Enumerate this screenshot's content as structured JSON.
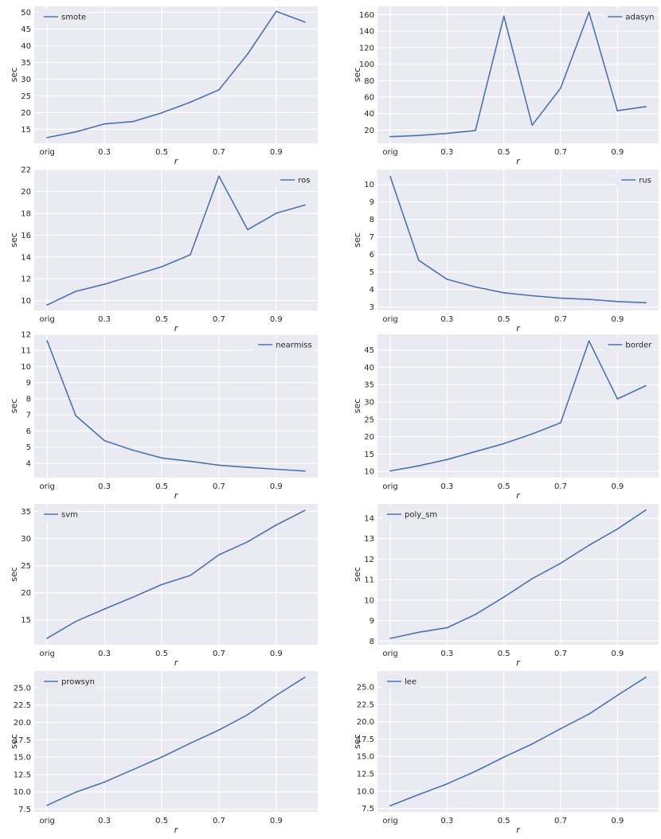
{
  "style": {
    "plot_bg": "#eaeaf2",
    "grid": "#ffffff",
    "line": "#4c72b0"
  },
  "x_tick_labels": [
    "orig",
    "0.3",
    "0.5",
    "0.7",
    "0.9"
  ],
  "x_tick_positions": [
    0.1,
    0.3,
    0.5,
    0.7,
    0.9
  ],
  "chart_data": [
    {
      "type": "line",
      "xlabel": "r",
      "ylabel": "sec",
      "legend_loc": "upper-left",
      "series": [
        {
          "name": "smote",
          "x": [
            0.1,
            0.2,
            0.3,
            0.4,
            0.5,
            0.6,
            0.7,
            0.8,
            0.9,
            1.0
          ],
          "y": [
            12.5,
            14.2,
            16.6,
            17.3,
            19.9,
            23.1,
            26.8,
            37.5,
            50.3,
            47.1
          ]
        }
      ],
      "ylim": [
        10.8,
        51.8
      ],
      "yticks": [
        15,
        20,
        25,
        30,
        35,
        40,
        45,
        50
      ]
    },
    {
      "type": "line",
      "xlabel": "r",
      "ylabel": "sec",
      "legend_loc": "upper-right",
      "series": [
        {
          "name": "adasyn",
          "x": [
            0.1,
            0.2,
            0.3,
            0.4,
            0.5,
            0.6,
            0.7,
            0.8,
            0.9,
            1.0
          ],
          "y": [
            12,
            13.5,
            16,
            19.5,
            158,
            26,
            71,
            163,
            43.5,
            48.5
          ]
        }
      ],
      "ylim": [
        4,
        170
      ],
      "yticks": [
        20,
        40,
        60,
        80,
        100,
        120,
        140,
        160
      ]
    },
    {
      "type": "line",
      "xlabel": "r",
      "ylabel": "sec",
      "legend_loc": "upper-right",
      "series": [
        {
          "name": "ros",
          "x": [
            0.1,
            0.2,
            0.3,
            0.4,
            0.5,
            0.6,
            0.7,
            0.8,
            0.9,
            1.0
          ],
          "y": [
            9.6,
            10.85,
            11.5,
            12.3,
            13.1,
            14.2,
            21.4,
            16.5,
            18.0,
            18.75
          ]
        }
      ],
      "ylim": [
        9.1,
        22.0
      ],
      "yticks": [
        10,
        12,
        14,
        16,
        18,
        20,
        22
      ]
    },
    {
      "type": "line",
      "xlabel": "r",
      "ylabel": "sec",
      "legend_loc": "upper-right",
      "series": [
        {
          "name": "rus",
          "x": [
            0.1,
            0.2,
            0.3,
            0.4,
            0.5,
            0.6,
            0.7,
            0.8,
            0.9,
            1.0
          ],
          "y": [
            10.45,
            5.67,
            4.58,
            4.14,
            3.81,
            3.64,
            3.5,
            3.43,
            3.31,
            3.24
          ]
        }
      ],
      "ylim": [
        2.8,
        10.85
      ],
      "yticks": [
        3,
        4,
        5,
        6,
        7,
        8,
        9,
        10
      ]
    },
    {
      "type": "line",
      "xlabel": "r",
      "ylabel": "sec",
      "legend_loc": "upper-right",
      "series": [
        {
          "name": "nearmiss",
          "x": [
            0.1,
            0.2,
            0.3,
            0.4,
            0.5,
            0.6,
            0.7,
            0.8,
            0.9,
            1.0
          ],
          "y": [
            11.6,
            6.95,
            5.4,
            4.8,
            4.32,
            4.11,
            3.87,
            3.74,
            3.62,
            3.51
          ]
        }
      ],
      "ylim": [
        3.1,
        12.0
      ],
      "yticks": [
        4,
        5,
        6,
        7,
        8,
        9,
        10,
        11,
        12
      ]
    },
    {
      "type": "line",
      "xlabel": "r",
      "ylabel": "sec",
      "legend_loc": "upper-right",
      "series": [
        {
          "name": "border",
          "x": [
            0.1,
            0.2,
            0.3,
            0.4,
            0.5,
            0.6,
            0.7,
            0.8,
            0.9,
            1.0
          ],
          "y": [
            10.1,
            11.6,
            13.4,
            15.7,
            18,
            20.8,
            24,
            47.6,
            30.9,
            34.7
          ]
        }
      ],
      "ylim": [
        8.2,
        49.5
      ],
      "yticks": [
        10,
        15,
        20,
        25,
        30,
        35,
        40,
        45
      ]
    },
    {
      "type": "line",
      "xlabel": "r",
      "ylabel": "sec",
      "legend_loc": "upper-left",
      "series": [
        {
          "name": "svm",
          "x": [
            0.1,
            0.2,
            0.3,
            0.4,
            0.5,
            0.6,
            0.7,
            0.8,
            0.9,
            1.0
          ],
          "y": [
            11.6,
            14.7,
            17,
            19.2,
            21.5,
            23.2,
            27,
            29.4,
            32.5,
            35.2
          ]
        }
      ],
      "ylim": [
        10.4,
        36.4
      ],
      "yticks": [
        15,
        20,
        25,
        30,
        35
      ]
    },
    {
      "type": "line",
      "xlabel": "r",
      "ylabel": "sec",
      "legend_loc": "upper-left",
      "series": [
        {
          "name": "poly_sm",
          "x": [
            0.1,
            0.2,
            0.3,
            0.4,
            0.5,
            0.6,
            0.7,
            0.8,
            0.9,
            1.0
          ],
          "y": [
            8.13,
            8.43,
            8.65,
            9.3,
            10.15,
            11.05,
            11.8,
            12.68,
            13.47,
            14.4
          ]
        }
      ],
      "ylim": [
        7.82,
        14.7
      ],
      "yticks": [
        8,
        9,
        10,
        11,
        12,
        13,
        14
      ]
    },
    {
      "type": "line",
      "xlabel": "r",
      "ylabel": "sec",
      "legend_loc": "upper-left",
      "series": [
        {
          "name": "prowsyn",
          "x": [
            0.1,
            0.2,
            0.3,
            0.4,
            0.5,
            0.6,
            0.7,
            0.8,
            0.9,
            1.0
          ],
          "y": [
            8.05,
            9.95,
            11.4,
            13.2,
            15,
            17,
            18.9,
            21.1,
            23.9,
            26.5
          ]
        }
      ],
      "ylim": [
        7.1,
        27.4
      ],
      "yticks": [
        7.5,
        10.0,
        12.5,
        15.0,
        17.5,
        20.0,
        22.5,
        25.0
      ]
    },
    {
      "type": "line",
      "xlabel": "r",
      "ylabel": "sec",
      "legend_loc": "upper-left",
      "series": [
        {
          "name": "lee",
          "x": [
            0.1,
            0.2,
            0.3,
            0.4,
            0.5,
            0.6,
            0.7,
            0.8,
            0.9,
            1.0
          ],
          "y": [
            7.9,
            9.5,
            11.05,
            12.85,
            14.9,
            16.8,
            19,
            21.1,
            23.8,
            26.4
          ]
        }
      ],
      "ylim": [
        7.0,
        27.3
      ],
      "yticks": [
        7.5,
        10.0,
        12.5,
        15.0,
        17.5,
        20.0,
        22.5,
        25.0
      ]
    }
  ]
}
